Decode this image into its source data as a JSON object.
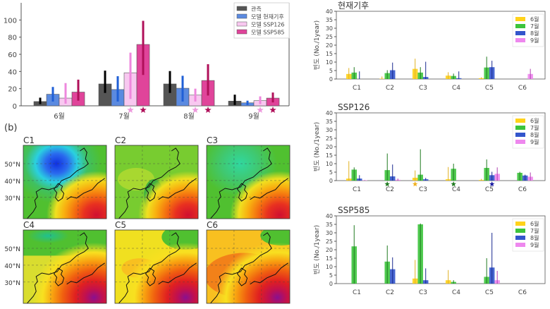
{
  "chart_data": [
    {
      "id": "a",
      "type": "bar",
      "title": "",
      "categories": [
        "6월",
        "7월",
        "8월",
        "9월"
      ],
      "ylim": [
        0,
        120
      ],
      "yticks": [
        0,
        20,
        40,
        60,
        80,
        100
      ],
      "legend_position": "top-right",
      "series": [
        {
          "name": "관측",
          "color": "#555555",
          "err_color": "#000000",
          "values": [
            5,
            25.5,
            25.5,
            5.5
          ],
          "err": [
            [
              2,
              9.5
            ],
            [
              15,
              41
            ],
            [
              15,
              40.5
            ],
            [
              1,
              13
            ]
          ]
        },
        {
          "name": "모델 현재기후",
          "color": "#5b8ae0",
          "err_color": "#1f5fd6",
          "values": [
            13.5,
            19,
            20.5,
            3.5
          ],
          "err": [
            [
              5,
              22
            ],
            [
              5,
              34.5
            ],
            [
              5,
              35
            ],
            [
              1,
              6
            ]
          ]
        },
        {
          "name": "모델 SSP126",
          "color": "#f8c8f0",
          "err_color": "#ee88dd",
          "values": [
            9,
            38.5,
            12.5,
            6
          ],
          "err": [
            [
              2.5,
              26.5
            ],
            [
              8,
              62
            ],
            [
              5,
              20
            ],
            [
              2,
              11
            ]
          ]
        },
        {
          "name": "모델 SSP585",
          "color": "#e0449a",
          "err_color": "#b0105a",
          "values": [
            16,
            71.5,
            29.5,
            9
          ],
          "err": [
            [
              6,
              30.5
            ],
            [
              36,
              99
            ],
            [
              12,
              48.5
            ],
            [
              4,
              15.5
            ]
          ]
        }
      ],
      "significance_stars": [
        {
          "category": "7월",
          "series": "모델 SSP126"
        },
        {
          "category": "7월",
          "series": "모델 SSP585"
        },
        {
          "category": "8월",
          "series": "모델 SSP126"
        },
        {
          "category": "8월",
          "series": "모델 SSP585"
        },
        {
          "category": "9월",
          "series": "모델 SSP126"
        },
        {
          "category": "9월",
          "series": "모델 SSP585"
        }
      ]
    },
    {
      "id": "c1",
      "type": "bar",
      "title": "현재기후",
      "ylabel": "빈도 (No./1year)",
      "categories": [
        "C1",
        "C2",
        "C3",
        "C4",
        "C5",
        "C6"
      ],
      "ylim": [
        0,
        40
      ],
      "yticks": [
        0,
        5,
        10,
        15,
        20,
        25,
        30,
        35,
        40
      ],
      "legend_position": "top-right",
      "series": [
        {
          "name": "6월",
          "color": "#ffd21a",
          "values": [
            3,
            0.2,
            6,
            2,
            0.5,
            0
          ],
          "err_high": [
            6.5,
            1.5,
            12,
            4,
            1,
            0
          ]
        },
        {
          "name": "7월",
          "color": "#3cc43c",
          "values": [
            3.8,
            3.5,
            3.8,
            1.8,
            6.8,
            0
          ],
          "err_high": [
            7,
            5.2,
            7,
            3.2,
            13.2,
            0
          ]
        },
        {
          "name": "8월",
          "color": "#3355cc",
          "values": [
            0,
            5.2,
            1.2,
            0.5,
            7,
            0
          ],
          "err_high": [
            4.5,
            9.7,
            10.2,
            4.5,
            10.8,
            0
          ]
        },
        {
          "name": "9월",
          "color": "#ee88ee",
          "values": [
            0,
            0,
            0,
            0,
            0,
            3
          ],
          "err_high": [
            0,
            0,
            0,
            0,
            0,
            6
          ]
        }
      ],
      "significance_stars": []
    },
    {
      "id": "c2",
      "type": "bar",
      "title": "SSP126",
      "ylabel": "빈도 (No./1year)",
      "categories": [
        "C1",
        "C2",
        "C3",
        "C4",
        "C5",
        "C6"
      ],
      "ylim": [
        0,
        40
      ],
      "yticks": [
        0,
        5,
        10,
        15,
        20,
        25,
        30,
        35,
        40
      ],
      "legend_position": "top-right",
      "series": [
        {
          "name": "6월",
          "color": "#ffd21a",
          "values": [
            1.2,
            0,
            1.7,
            0.8,
            0.4,
            0
          ],
          "err_high": [
            11.5,
            0,
            6,
            8,
            1,
            0
          ]
        },
        {
          "name": "7월",
          "color": "#3cc43c",
          "values": [
            6.5,
            6.2,
            3.5,
            7,
            7.5,
            4.6
          ],
          "err_high": [
            7.8,
            16,
            18.5,
            10,
            12.5,
            5.2
          ]
        },
        {
          "name": "8월",
          "color": "#3355cc",
          "values": [
            1.2,
            2.5,
            0.8,
            0,
            3.2,
            3
          ],
          "err_high": [
            3.2,
            9.5,
            1.6,
            0,
            5.2,
            3.5
          ]
        },
        {
          "name": "9월",
          "color": "#ee88ee",
          "values": [
            0.2,
            0.5,
            0,
            0,
            4,
            2.3
          ],
          "err_high": [
            0.3,
            1.2,
            0,
            0,
            7.8,
            4.8
          ]
        }
      ],
      "significance_stars": [
        {
          "category": "C2",
          "series": "7월"
        },
        {
          "category": "C3",
          "series": "6월"
        },
        {
          "category": "C4",
          "series": "7월"
        },
        {
          "category": "C5",
          "series": "8월"
        }
      ]
    },
    {
      "id": "c3",
      "type": "bar",
      "title": "SSP585",
      "ylabel": "빈도 (No./1year)",
      "categories": [
        "C1",
        "C2",
        "C3",
        "C4",
        "C5",
        "C6"
      ],
      "ylim": [
        0,
        40
      ],
      "yticks": [
        0,
        5,
        10,
        15,
        20,
        25,
        30,
        35,
        40
      ],
      "legend_position": "top-right",
      "series": [
        {
          "name": "6월",
          "color": "#ffd21a",
          "values": [
            0,
            0,
            3,
            2,
            0,
            0
          ],
          "err_high": [
            0,
            0,
            14,
            8,
            0,
            0
          ]
        },
        {
          "name": "7월",
          "color": "#3cc43c",
          "values": [
            22,
            13,
            35,
            1,
            4,
            0
          ],
          "err_high": [
            34.5,
            22.5,
            35.5,
            2,
            15,
            0
          ]
        },
        {
          "name": "8월",
          "color": "#3355cc",
          "values": [
            0,
            8.5,
            2,
            0,
            9.5,
            0
          ],
          "err_high": [
            0,
            15.5,
            9,
            0,
            30,
            0
          ]
        },
        {
          "name": "9월",
          "color": "#ee88ee",
          "values": [
            0,
            0,
            0,
            0,
            2,
            0
          ],
          "err_high": [
            0,
            0,
            0,
            0,
            7.5,
            0
          ]
        }
      ],
      "significance_stars": []
    }
  ],
  "panel_b": {
    "label": "(b)",
    "lat_labels": [
      "50°N",
      "40°N",
      "30°N"
    ],
    "maps": [
      {
        "title": "C1",
        "pattern": "low-north"
      },
      {
        "title": "C2",
        "pattern": "flat-green"
      },
      {
        "title": "C3",
        "pattern": "weak-low"
      },
      {
        "title": "C4",
        "pattern": "strong-high"
      },
      {
        "title": "C5",
        "pattern": "yellow-high"
      },
      {
        "title": "C6",
        "pattern": "orange-high"
      }
    ]
  }
}
